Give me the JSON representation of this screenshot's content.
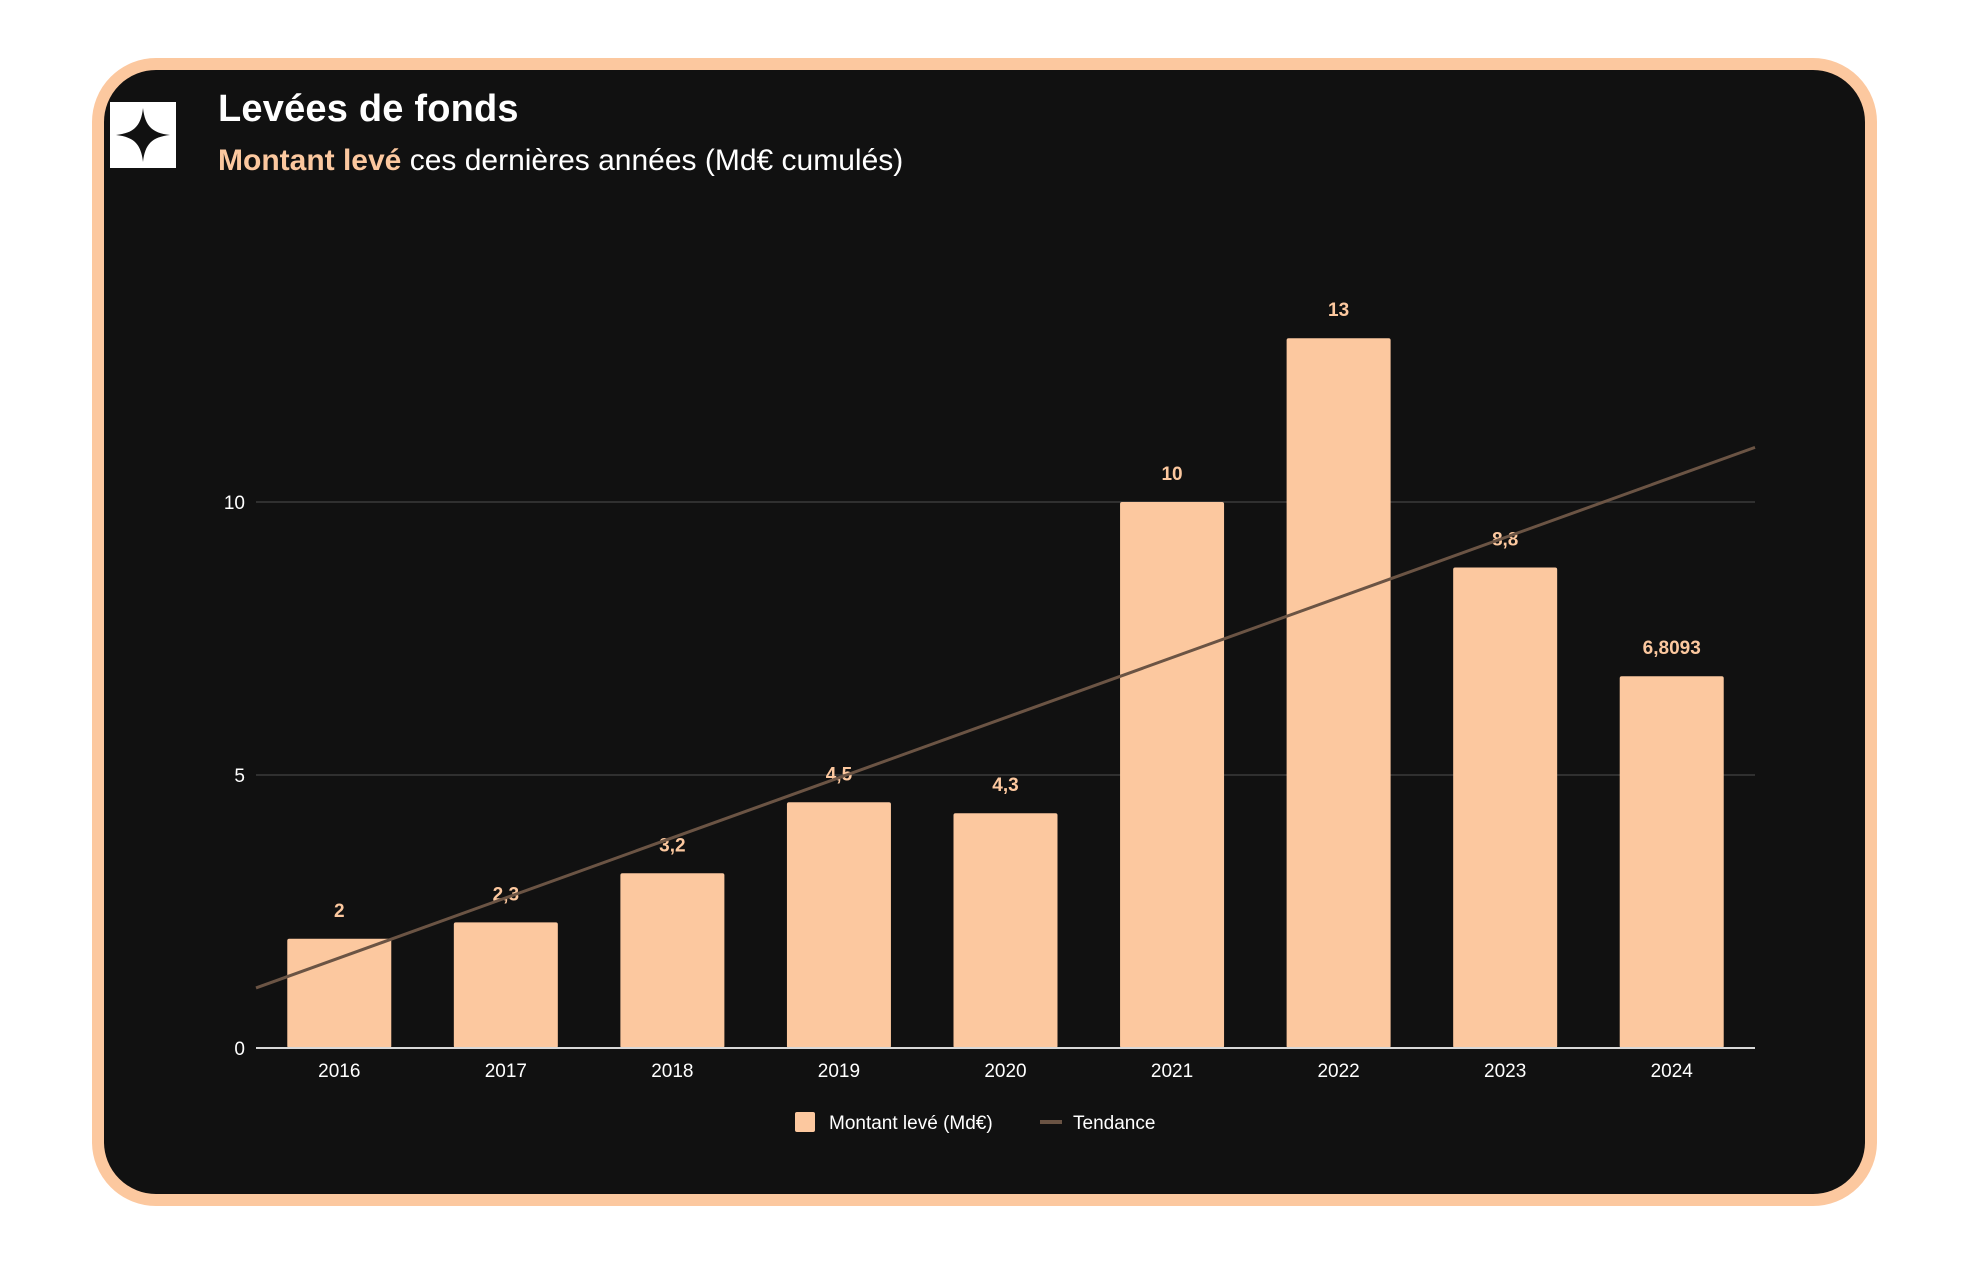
{
  "header": {
    "title": "Levées de fonds",
    "subtitle_accent": "Montant levé",
    "subtitle_rest": " ces dernières années (Md€ cumulés)",
    "logo_icon": "four-point-star-icon"
  },
  "colors": {
    "card_background": "#111111",
    "card_border": "#fcc89f",
    "bar": "#fcc89f",
    "trend": "#6b5444",
    "text": "#ffffff",
    "gridline": "#3a3a3a"
  },
  "chart_data": {
    "type": "bar",
    "categories": [
      "2016",
      "2017",
      "2018",
      "2019",
      "2020",
      "2021",
      "2022",
      "2023",
      "2024"
    ],
    "series": [
      {
        "name": "Montant levé (Md€)",
        "values": [
          2,
          2.3,
          3.2,
          4.5,
          4.3,
          10,
          13,
          8.8,
          6.8093
        ],
        "labels": [
          "2",
          "2,3",
          "3,2",
          "4,5",
          "4,3",
          "10",
          "13",
          "8,8",
          "6,8093"
        ]
      }
    ],
    "trendline": {
      "name": "Tendance",
      "type": "linear",
      "start_value": 1.1,
      "end_value": 11.0
    },
    "y_ticks": [
      0,
      5,
      10
    ],
    "y_tick_labels": [
      "0",
      "5",
      "10"
    ],
    "ylim": [
      0,
      13
    ],
    "xlabel": "",
    "ylabel": "",
    "grid": true,
    "legend_position": "bottom"
  }
}
